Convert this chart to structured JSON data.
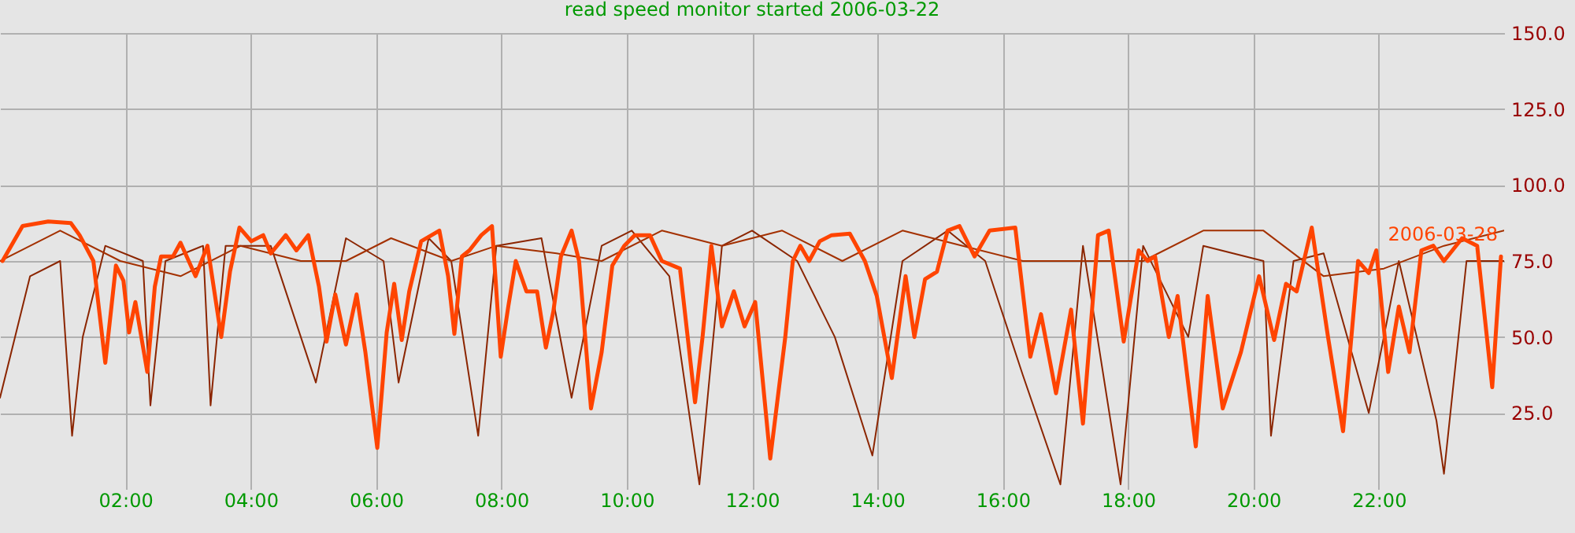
{
  "chart_data": {
    "type": "line",
    "title": "read speed monitor started 2006-03-22",
    "xlim": [
      0,
      24
    ],
    "ylim": [
      0,
      150
    ],
    "xticks": [
      {
        "value": 2,
        "label": "02:00"
      },
      {
        "value": 4,
        "label": "04:00"
      },
      {
        "value": 6,
        "label": "06:00"
      },
      {
        "value": 8,
        "label": "08:00"
      },
      {
        "value": 10,
        "label": "10:00"
      },
      {
        "value": 12,
        "label": "12:00"
      },
      {
        "value": 14,
        "label": "14:00"
      },
      {
        "value": 16,
        "label": "16:00"
      },
      {
        "value": 18,
        "label": "18:00"
      },
      {
        "value": 20,
        "label": "20:00"
      },
      {
        "value": 22,
        "label": "22:00"
      }
    ],
    "yticks": [
      {
        "value": 25,
        "label": "25.0"
      },
      {
        "value": 50,
        "label": "50.0"
      },
      {
        "value": 75,
        "label": "75.0"
      },
      {
        "value": 100,
        "label": "100.0"
      },
      {
        "value": 125,
        "label": "125.0"
      },
      {
        "value": 150,
        "label": "150.0"
      }
    ],
    "grid": true,
    "series": [
      {
        "color": "#8b2500",
        "x": [
          0,
          0.48,
          0.96,
          1.15,
          1.32,
          1.68,
          2.28,
          2.4,
          2.64,
          3.24,
          3.36,
          3.6,
          4.32,
          5.04,
          5.52,
          6.12,
          6.36,
          6.84,
          7.2,
          7.63,
          7.92,
          8.64,
          9.12,
          9.6,
          10.08,
          10.68,
          11.16,
          11.52,
          12,
          12.72,
          13.32,
          13.92,
          14.4,
          15.12,
          15.72,
          16.32,
          16.92,
          17.28,
          17.88,
          18.24,
          18.96,
          19.2,
          20.16,
          20.28,
          20.64,
          21.12,
          21.84,
          22.32,
          22.92,
          23.04,
          23.4,
          24
        ],
        "values": [
          30,
          70,
          75,
          17.5,
          50,
          80,
          75,
          27.5,
          75,
          80,
          27.5,
          80,
          80,
          35,
          82.5,
          75,
          35,
          82.5,
          75,
          17.5,
          80,
          82.5,
          30,
          80,
          85,
          70,
          1.5,
          80,
          85,
          75,
          50,
          11,
          75,
          85,
          75,
          37.5,
          1.5,
          80,
          1.5,
          80,
          50,
          80,
          75,
          17.5,
          75,
          77.5,
          25,
          75,
          22.5,
          5,
          75,
          75
        ]
      },
      {
        "color": "#a33000",
        "x": [
          0,
          0.96,
          1.92,
          2.88,
          3.84,
          4.8,
          5.52,
          6.24,
          7.2,
          7.92,
          8.88,
          9.6,
          10.56,
          11.52,
          12.48,
          13.44,
          14.4,
          15.36,
          16.32,
          17.28,
          18.24,
          19.2,
          20.16,
          21.12,
          22.08,
          23.04,
          24
        ],
        "values": [
          75,
          85,
          75,
          70,
          80,
          75,
          75,
          82.5,
          75,
          80,
          77.5,
          75,
          85,
          80,
          85,
          75,
          85,
          80,
          75,
          75,
          75,
          85,
          85,
          70,
          72.5,
          80,
          85
        ]
      },
      {
        "name": "2006-03-28",
        "color": "#ff4400",
        "x": [
          0.04,
          0.36,
          0.77,
          1.13,
          1.27,
          1.49,
          1.68,
          1.85,
          1.97,
          2.06,
          2.16,
          2.35,
          2.47,
          2.57,
          2.76,
          2.88,
          3.12,
          3.31,
          3.53,
          3.67,
          3.82,
          4.01,
          4.2,
          4.32,
          4.56,
          4.73,
          4.92,
          5.09,
          5.21,
          5.35,
          5.52,
          5.69,
          5.83,
          6.02,
          6.17,
          6.29,
          6.41,
          6.53,
          6.72,
          7.01,
          7.15,
          7.25,
          7.37,
          7.49,
          7.68,
          7.85,
          7.99,
          8.11,
          8.23,
          8.4,
          8.57,
          8.71,
          8.83,
          8.95,
          9.12,
          9.24,
          9.43,
          9.6,
          9.77,
          9.96,
          10.13,
          10.37,
          10.56,
          10.85,
          11.09,
          11.21,
          11.35,
          11.52,
          11.71,
          11.88,
          12.05,
          12.29,
          12.53,
          12.65,
          12.77,
          12.91,
          13.08,
          13.27,
          13.56,
          13.8,
          13.99,
          14.23,
          14.45,
          14.59,
          14.76,
          14.95,
          15.12,
          15.31,
          15.55,
          15.79,
          16.2,
          16.44,
          16.61,
          16.85,
          17.09,
          17.28,
          17.52,
          17.69,
          17.93,
          18.17,
          18.31,
          18.43,
          18.65,
          18.79,
          19.08,
          19.27,
          19.51,
          19.8,
          20.09,
          20.33,
          20.52,
          20.69,
          20.93,
          21.19,
          21.43,
          21.67,
          21.84,
          21.96,
          22.15,
          22.32,
          22.49,
          22.68,
          22.87,
          23.04,
          23.33,
          23.57,
          23.81,
          23.95
        ],
        "values": [
          75,
          86.5,
          88,
          87.5,
          83.5,
          75,
          41.5,
          73.5,
          68.5,
          51.5,
          61.5,
          38.5,
          66.5,
          76.5,
          76.5,
          81,
          70,
          80,
          50,
          71.5,
          86,
          81.5,
          83.5,
          77.5,
          83.5,
          78.5,
          83.5,
          66.5,
          48.5,
          64,
          47.5,
          64,
          45,
          13.5,
          51.5,
          67.5,
          49,
          65,
          81.5,
          85,
          70,
          51,
          76.5,
          78.5,
          83.5,
          86.5,
          43.5,
          60,
          75,
          65,
          65,
          46.5,
          58.5,
          76.5,
          85,
          75,
          26.5,
          45,
          73.5,
          80,
          83.5,
          83.5,
          75,
          72.5,
          28.5,
          50,
          80,
          53.5,
          65,
          53.5,
          61.5,
          10,
          50,
          75,
          80,
          75,
          81.5,
          83.5,
          84,
          75,
          63.5,
          36.5,
          70,
          50,
          69,
          71.5,
          85,
          86.5,
          76.5,
          85,
          86,
          43.5,
          57.5,
          31.5,
          59,
          21.5,
          83.5,
          85,
          48.5,
          78.5,
          75,
          76.5,
          50,
          63.5,
          14,
          63.5,
          26.5,
          45,
          70,
          49,
          67.5,
          65,
          86,
          50,
          19,
          75,
          71,
          78.5,
          38.5,
          60,
          45,
          78.5,
          80,
          75,
          82.5,
          80,
          33.5,
          76.5
        ]
      }
    ]
  }
}
